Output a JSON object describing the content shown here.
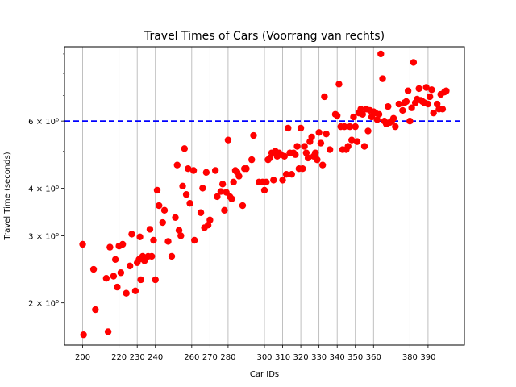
{
  "chart_data": {
    "type": "scatter",
    "title": "Travel Times of Cars (Voorrang van rechts)",
    "xlabel": "Car IDs",
    "ylabel": "Travel Time (seconds)",
    "y_scale": "log",
    "xlim": [
      190,
      410
    ],
    "ylim": [
      1.55,
      9.4
    ],
    "x_ticks": [
      200,
      220,
      230,
      240,
      260,
      270,
      280,
      300,
      310,
      320,
      330,
      340,
      350,
      360,
      380,
      390
    ],
    "x_tick_labels": [
      "200",
      "220",
      "230",
      "240",
      "260",
      "270",
      "280",
      "300",
      "310",
      "320",
      "330",
      "340",
      "350",
      "360",
      "380",
      "390"
    ],
    "y_ticks": [
      2,
      3,
      4,
      6
    ],
    "y_tick_labels": [
      "2 × 10⁰",
      "3 × 10⁰",
      "4 × 10⁰",
      "6 × 10⁰"
    ],
    "grid": "vertical-at-x-ticks",
    "point_color": "#ff0000",
    "reference_line": {
      "y": 6,
      "color": "#0000ff",
      "style": "dashed"
    },
    "points": [
      [
        200,
        2.85
      ],
      [
        200.5,
        1.65
      ],
      [
        206,
        2.45
      ],
      [
        207,
        1.92
      ],
      [
        213,
        2.32
      ],
      [
        214,
        1.68
      ],
      [
        215,
        2.8
      ],
      [
        217,
        2.35
      ],
      [
        218,
        2.6
      ],
      [
        219,
        2.2
      ],
      [
        220,
        2.82
      ],
      [
        221,
        2.4
      ],
      [
        222,
        2.85
      ],
      [
        224,
        2.12
      ],
      [
        226,
        2.5
      ],
      [
        227,
        3.03
      ],
      [
        229,
        2.15
      ],
      [
        230,
        2.55
      ],
      [
        231,
        2.6
      ],
      [
        231.5,
        2.98
      ],
      [
        232,
        2.3
      ],
      [
        233,
        2.65
      ],
      [
        234,
        2.58
      ],
      [
        236,
        2.65
      ],
      [
        237,
        3.12
      ],
      [
        238,
        2.65
      ],
      [
        239,
        2.92
      ],
      [
        240,
        2.3
      ],
      [
        241,
        3.95
      ],
      [
        242,
        3.6
      ],
      [
        244,
        3.25
      ],
      [
        245,
        3.5
      ],
      [
        247,
        2.9
      ],
      [
        249,
        2.65
      ],
      [
        251,
        3.35
      ],
      [
        252,
        4.6
      ],
      [
        253,
        3.1
      ],
      [
        254,
        3.0
      ],
      [
        255,
        4.05
      ],
      [
        256,
        5.08
      ],
      [
        257,
        3.85
      ],
      [
        258,
        4.5
      ],
      [
        259,
        3.65
      ],
      [
        261,
        4.45
      ],
      [
        261.5,
        2.92
      ],
      [
        265,
        3.45
      ],
      [
        266,
        4.0
      ],
      [
        267,
        3.15
      ],
      [
        268,
        4.4
      ],
      [
        269,
        3.2
      ],
      [
        270,
        3.3
      ],
      [
        273,
        4.45
      ],
      [
        274,
        3.8
      ],
      [
        276,
        3.92
      ],
      [
        277,
        4.1
      ],
      [
        278,
        3.5
      ],
      [
        279,
        3.9
      ],
      [
        280,
        5.35
      ],
      [
        281,
        3.8
      ],
      [
        282,
        3.75
      ],
      [
        283,
        4.15
      ],
      [
        284,
        4.45
      ],
      [
        285,
        4.4
      ],
      [
        286,
        4.3
      ],
      [
        288,
        3.6
      ],
      [
        289,
        4.5
      ],
      [
        290,
        4.5
      ],
      [
        293,
        4.75
      ],
      [
        294,
        5.5
      ],
      [
        297,
        4.15
      ],
      [
        299,
        4.15
      ],
      [
        300,
        3.95
      ],
      [
        301,
        4.15
      ],
      [
        302,
        4.75
      ],
      [
        303,
        4.8
      ],
      [
        304,
        4.95
      ],
      [
        305,
        4.2
      ],
      [
        306,
        5.0
      ],
      [
        307,
        4.85
      ],
      [
        308,
        4.95
      ],
      [
        309,
        4.9
      ],
      [
        310,
        4.2
      ],
      [
        311,
        4.85
      ],
      [
        312,
        4.35
      ],
      [
        313,
        5.75
      ],
      [
        314,
        4.95
      ],
      [
        315,
        4.35
      ],
      [
        316,
        4.95
      ],
      [
        317,
        4.9
      ],
      [
        318,
        5.15
      ],
      [
        319,
        4.5
      ],
      [
        320,
        5.75
      ],
      [
        321,
        4.5
      ],
      [
        322,
        5.15
      ],
      [
        323,
        4.95
      ],
      [
        324,
        4.8
      ],
      [
        325,
        5.3
      ],
      [
        326,
        5.45
      ],
      [
        327,
        4.85
      ],
      [
        328,
        4.95
      ],
      [
        329,
        4.75
      ],
      [
        330,
        5.6
      ],
      [
        331,
        5.25
      ],
      [
        332,
        4.6
      ],
      [
        333,
        6.95
      ],
      [
        334,
        5.55
      ],
      [
        336,
        5.05
      ],
      [
        339,
        6.25
      ],
      [
        340,
        6.2
      ],
      [
        341,
        7.5
      ],
      [
        342,
        5.8
      ],
      [
        343,
        5.05
      ],
      [
        344,
        5.8
      ],
      [
        345,
        5.05
      ],
      [
        346,
        5.15
      ],
      [
        347,
        5.8
      ],
      [
        348,
        5.35
      ],
      [
        349,
        6.15
      ],
      [
        350,
        5.8
      ],
      [
        351,
        5.3
      ],
      [
        352,
        6.3
      ],
      [
        353,
        6.45
      ],
      [
        354,
        6.25
      ],
      [
        355,
        5.15
      ],
      [
        356,
        6.45
      ],
      [
        357,
        5.65
      ],
      [
        358,
        6.4
      ],
      [
        359,
        6.15
      ],
      [
        360,
        6.35
      ],
      [
        361,
        6.3
      ],
      [
        362,
        6.05
      ],
      [
        363,
        6.25
      ],
      [
        364,
        9.0
      ],
      [
        365,
        7.75
      ],
      [
        366,
        6.0
      ],
      [
        367,
        5.9
      ],
      [
        368,
        6.55
      ],
      [
        369,
        5.95
      ],
      [
        370,
        6.0
      ],
      [
        371,
        6.1
      ],
      [
        372,
        5.8
      ],
      [
        374,
        6.65
      ],
      [
        376,
        6.4
      ],
      [
        377,
        6.7
      ],
      [
        378,
        6.75
      ],
      [
        379,
        7.2
      ],
      [
        380,
        6.0
      ],
      [
        381,
        6.5
      ],
      [
        382,
        8.55
      ],
      [
        383,
        6.7
      ],
      [
        384,
        6.85
      ],
      [
        385,
        7.3
      ],
      [
        386,
        6.8
      ],
      [
        387,
        6.75
      ],
      [
        388,
        6.7
      ],
      [
        389,
        7.35
      ],
      [
        390,
        6.65
      ],
      [
        391,
        6.95
      ],
      [
        392,
        7.25
      ],
      [
        393,
        6.3
      ],
      [
        395,
        6.65
      ],
      [
        396,
        6.45
      ],
      [
        397,
        7.05
      ],
      [
        398,
        6.45
      ],
      [
        399,
        7.15
      ],
      [
        400,
        7.2
      ]
    ]
  }
}
